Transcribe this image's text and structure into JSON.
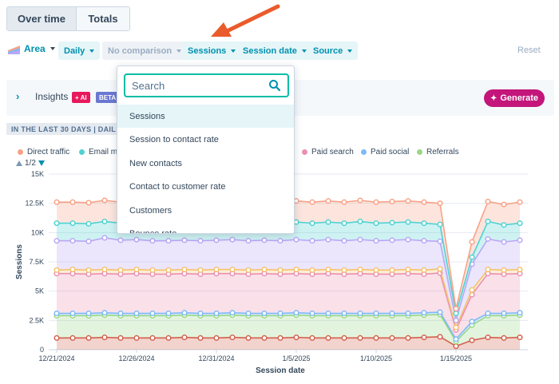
{
  "view_toggle": {
    "over_time": "Over time",
    "totals": "Totals"
  },
  "toolbar": {
    "chart_type": "Area",
    "daily": "Daily",
    "comparison": "No comparison",
    "sessions": "Sessions",
    "session_date": "Session date",
    "source": "Source",
    "reset": "Reset"
  },
  "insights": {
    "title": "Insights",
    "ai_badge": "+ AI",
    "beta_badge": "BETA",
    "generate": "Generate"
  },
  "range_label": "IN THE LAST 30 DAYS | DAIL",
  "legend": {
    "items": [
      {
        "label": "Direct traffic",
        "color": "#f8a287"
      },
      {
        "label": "Email ma",
        "color": "#4fd2d2"
      },
      {
        "label": "Paid search",
        "color": "#ea90b1"
      },
      {
        "label": "Paid social",
        "color": "#7fb9f7"
      },
      {
        "label": "Referrals",
        "color": "#99d788"
      }
    ],
    "pager": "1/2"
  },
  "dropdown": {
    "search_placeholder": "Search",
    "options": [
      "Sessions",
      "Session to contact rate",
      "New contacts",
      "Contact to customer rate",
      "Customers",
      "Bounce rate"
    ],
    "selected": "Sessions"
  },
  "chart_data": {
    "type": "area",
    "stacked": true,
    "ylabel": "Sessions",
    "xlabel": "Session date",
    "ylim": [
      0,
      15000
    ],
    "y_ticks": [
      "0",
      "2.5K",
      "5K",
      "7.5K",
      "10K",
      "12.5K",
      "15K"
    ],
    "x_tick_labels": [
      "12/21/2024",
      "12/26/2024",
      "12/31/2024",
      "1/5/2025",
      "1/10/2025",
      "1/15/2025"
    ],
    "x": [
      "12/21/2024",
      "12/22/2024",
      "12/23/2024",
      "12/24/2024",
      "12/25/2024",
      "12/26/2024",
      "12/27/2024",
      "12/28/2024",
      "12/29/2024",
      "12/30/2024",
      "12/31/2024",
      "1/1/2025",
      "1/2/2025",
      "1/3/2025",
      "1/4/2025",
      "1/5/2025",
      "1/6/2025",
      "1/7/2025",
      "1/8/2025",
      "1/9/2025",
      "1/10/2025",
      "1/11/2025",
      "1/12/2025",
      "1/13/2025",
      "1/14/2025",
      "1/15/2025",
      "1/16/2025",
      "1/17/2025",
      "1/18/2025",
      "1/19/2025"
    ],
    "series": [
      {
        "color": "#d2624d",
        "values": [
          1000,
          1000,
          1000,
          1050,
          1000,
          1000,
          1000,
          1000,
          1050,
          1000,
          1000,
          1050,
          1000,
          1000,
          1000,
          1050,
          1000,
          1000,
          1000,
          1000,
          1000,
          1000,
          1000,
          1050,
          1100,
          300,
          800,
          1050,
          1000,
          1050
        ]
      },
      {
        "color": "#99d788",
        "values": [
          2900,
          2900,
          2900,
          2950,
          2900,
          2900,
          2900,
          2900,
          2950,
          2900,
          2900,
          2950,
          2900,
          2900,
          2900,
          2950,
          2900,
          2900,
          2900,
          2900,
          2900,
          2900,
          2900,
          2950,
          3000,
          700,
          2100,
          2900,
          2900,
          2950
        ]
      },
      {
        "color": "#7fb9f7",
        "values": [
          3100,
          3100,
          3100,
          3150,
          3100,
          3100,
          3100,
          3100,
          3150,
          3100,
          3100,
          3150,
          3100,
          3100,
          3100,
          3150,
          3100,
          3100,
          3100,
          3100,
          3100,
          3100,
          3100,
          3150,
          3200,
          900,
          2400,
          3100,
          3100,
          3150
        ]
      },
      {
        "color": "#ea90b1",
        "values": [
          6500,
          6500,
          6450,
          6500,
          6450,
          6500,
          6450,
          6450,
          6500,
          6450,
          6500,
          6500,
          6450,
          6500,
          6450,
          6500,
          6450,
          6500,
          6450,
          6500,
          6450,
          6450,
          6500,
          6450,
          6550,
          1700,
          4700,
          6500,
          6450,
          6500
        ]
      },
      {
        "color": "#f5c26b",
        "values": [
          6800,
          6850,
          6800,
          6850,
          6800,
          6850,
          6800,
          6800,
          6850,
          6800,
          6850,
          6850,
          6800,
          6850,
          6800,
          6850,
          6800,
          6850,
          6800,
          6850,
          6800,
          6800,
          6850,
          6800,
          6900,
          1900,
          5100,
          6850,
          6800,
          6850
        ]
      },
      {
        "color": "#b9a7f5",
        "values": [
          9300,
          9300,
          9250,
          9550,
          9350,
          9400,
          9300,
          9300,
          9350,
          9300,
          9350,
          9400,
          9300,
          9350,
          9300,
          9400,
          9300,
          9400,
          9300,
          9400,
          9300,
          9350,
          9400,
          9300,
          9250,
          2500,
          7300,
          9450,
          9200,
          9350
        ]
      },
      {
        "color": "#4fd2d2",
        "values": [
          10800,
          10800,
          10750,
          10950,
          10800,
          10850,
          10800,
          10800,
          10850,
          10800,
          10850,
          10900,
          10800,
          10850,
          10800,
          10900,
          10800,
          10900,
          10800,
          10950,
          10800,
          10850,
          10900,
          10800,
          10700,
          3100,
          7900,
          10950,
          10650,
          10800
        ]
      },
      {
        "color": "#f8a287",
        "values": [
          12600,
          12600,
          12550,
          12750,
          12600,
          12650,
          12600,
          12600,
          12650,
          12600,
          12650,
          12700,
          12600,
          12650,
          12600,
          12700,
          12600,
          12700,
          12600,
          12750,
          12600,
          12650,
          12700,
          12600,
          12500,
          3500,
          9200,
          12650,
          12400,
          12600
        ]
      }
    ]
  }
}
